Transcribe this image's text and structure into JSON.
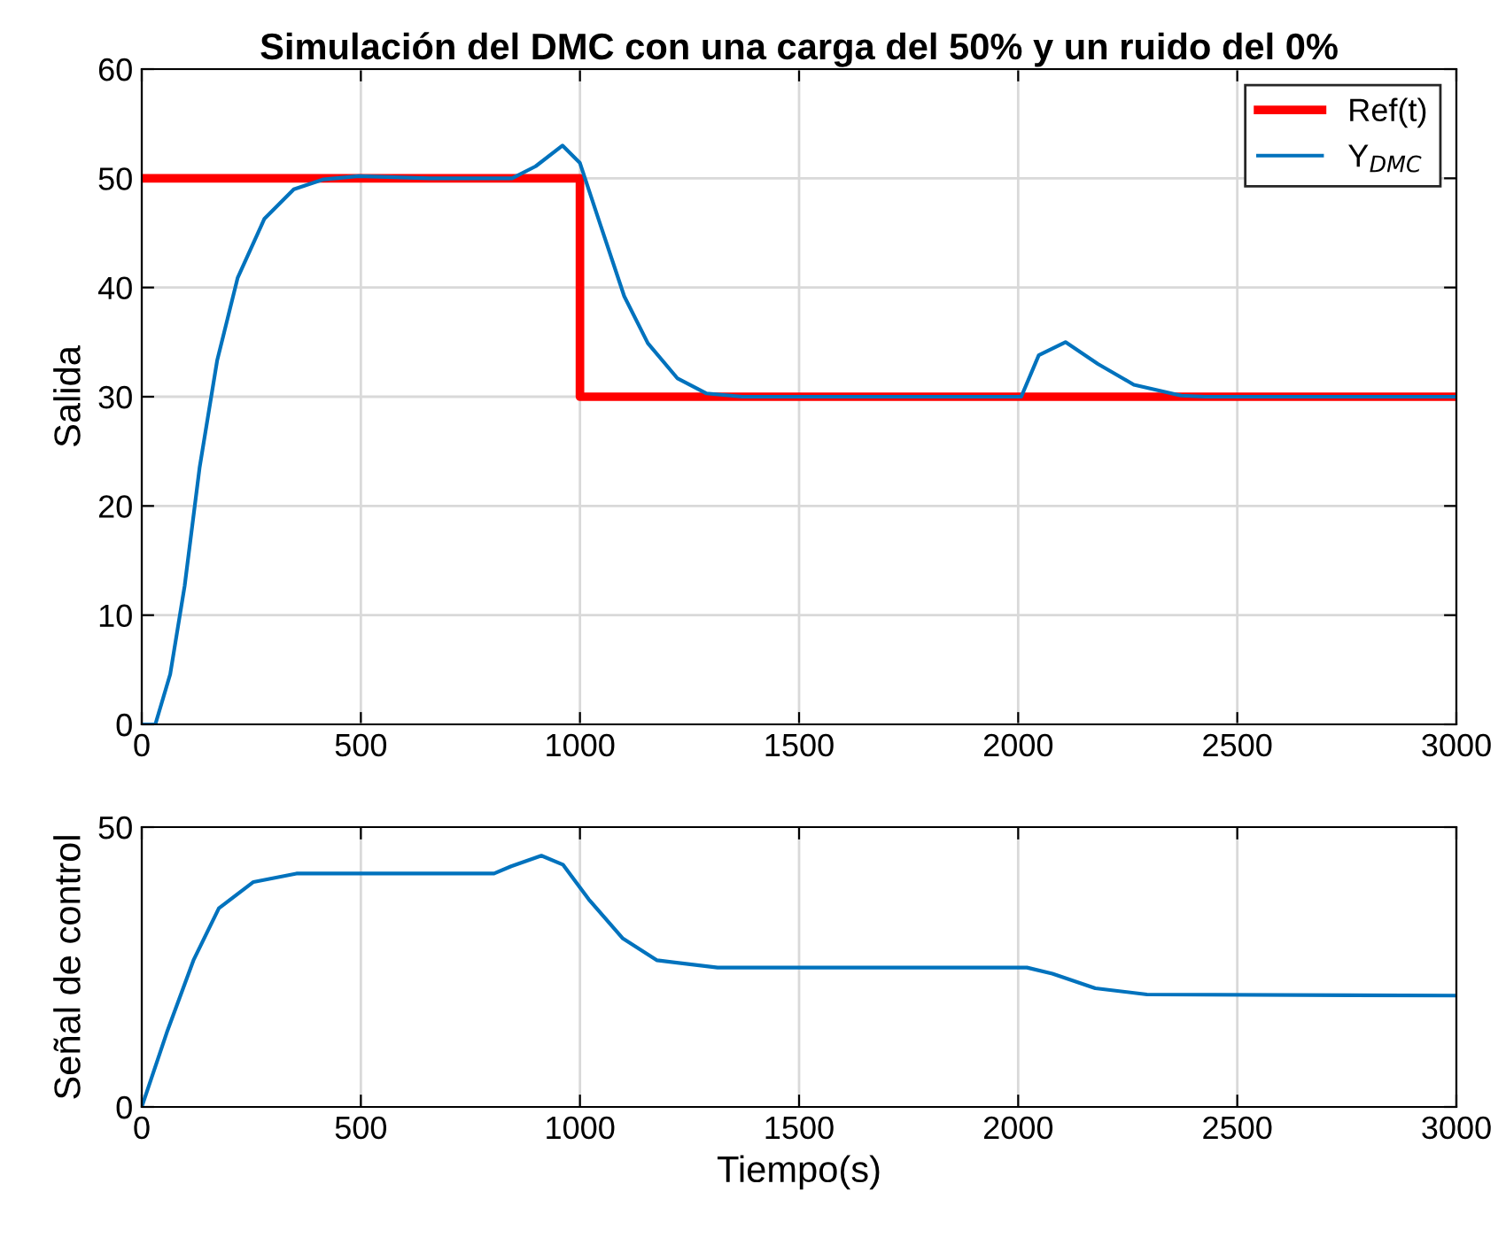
{
  "chart_data": [
    {
      "type": "line",
      "title": "Simulación del DMC con una carga del 50% y un ruido del 0%",
      "ylabel": "Salida",
      "xlim": [
        0,
        3000
      ],
      "xticks": [
        0,
        500,
        1000,
        1500,
        2000,
        2500,
        3000
      ],
      "ylim": [
        0,
        60
      ],
      "yticks": [
        0,
        10,
        20,
        30,
        40,
        50,
        60
      ],
      "grid": true,
      "legend": "top right",
      "series": [
        {
          "name": "Ref(t)",
          "color": "#ff0000",
          "x": [
            0,
            1000,
            1000,
            3000
          ],
          "values": [
            50,
            50,
            30,
            30
          ]
        },
        {
          "name": "Y$_{DMC}$",
          "color": "#0072bd",
          "x": [
            0,
            31,
            65,
            98,
            132,
            172,
            219,
            280,
            347,
            415,
            495,
            657,
            845,
            899,
            960,
            1000,
            1047,
            1101,
            1155,
            1222,
            1289,
            1370,
            2007,
            2047,
            2108,
            2182,
            2264,
            2372,
            2426,
            3000
          ],
          "values": [
            0,
            0,
            4.6,
            12.7,
            23.5,
            33.3,
            40.9,
            46.3,
            49,
            49.9,
            50.2,
            50,
            50,
            51.1,
            53,
            51.4,
            45.7,
            39.2,
            34.9,
            31.7,
            30.3,
            30,
            30,
            33.8,
            35,
            33,
            31.1,
            30.1,
            30,
            30
          ]
        }
      ]
    },
    {
      "type": "line",
      "xlabel": "Tiempo(s)",
      "ylabel": "Señal de control",
      "xlim": [
        0,
        3000
      ],
      "xticks": [
        0,
        500,
        1000,
        1500,
        2000,
        2500,
        3000
      ],
      "ylim": [
        0,
        50
      ],
      "yticks": [
        0,
        50
      ],
      "grid": "x",
      "series": [
        {
          "color": "#0072bd",
          "x": [
            0,
            59,
            118,
            176,
            255,
            353,
            500,
            804,
            843,
            912,
            961,
            1020,
            1098,
            1176,
            1314,
            2020,
            2078,
            2176,
            2294,
            3000
          ],
          "values": [
            0,
            13.7,
            26.2,
            35.5,
            40.2,
            41.7,
            41.7,
            41.7,
            43,
            44.9,
            43.3,
            37.1,
            30.1,
            26.2,
            24.9,
            24.9,
            23.8,
            21.2,
            20.1,
            19.9
          ]
        }
      ]
    }
  ]
}
